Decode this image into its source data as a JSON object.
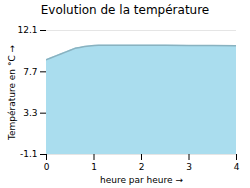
{
  "chart_data": {
    "type": "area",
    "title": "Evolution de la température",
    "xlabel": "heure par heure",
    "ylabel": "Température en °C",
    "x": [
      0,
      0.1,
      0.2,
      0.3,
      0.4,
      0.5,
      0.6,
      0.7,
      0.8,
      0.9,
      1.0,
      1.1,
      1.2,
      1.5,
      2.0,
      2.5,
      3.0,
      3.5,
      4.0
    ],
    "values": [
      9.0,
      9.2,
      9.4,
      9.6,
      9.8,
      10.0,
      10.2,
      10.3,
      10.4,
      10.45,
      10.5,
      10.52,
      10.53,
      10.54,
      10.52,
      10.52,
      10.51,
      10.5,
      10.48
    ],
    "color": "#aaddee",
    "xlim": [
      0,
      4
    ],
    "xticks": [
      0,
      1,
      2,
      3,
      4
    ],
    "ylim": [
      -1.1,
      12.1
    ],
    "yticks": [
      -1.1,
      3.3,
      7.7,
      12.1
    ],
    "grid": true
  }
}
